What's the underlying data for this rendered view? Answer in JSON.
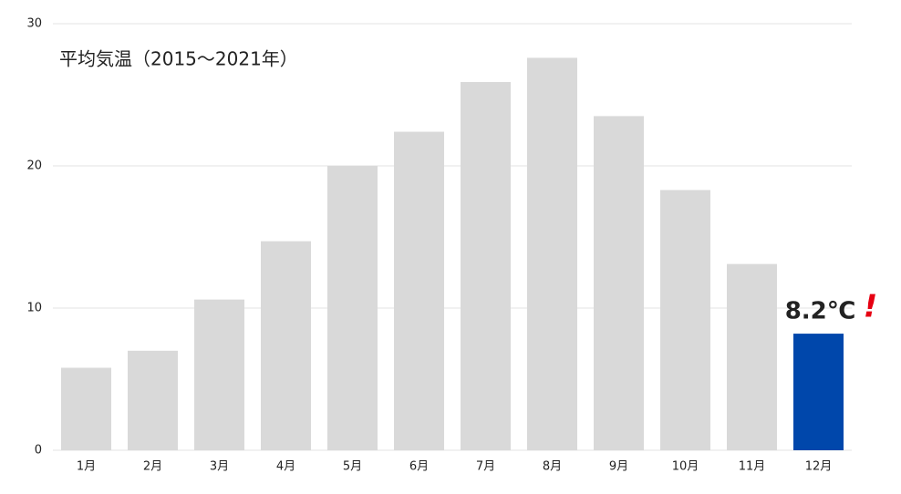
{
  "chart_data": {
    "type": "bar",
    "title": "平均気温（2015〜2021年）",
    "categories": [
      "1月",
      "2月",
      "3月",
      "4月",
      "5月",
      "6月",
      "7月",
      "8月",
      "9月",
      "10月",
      "11月",
      "12月"
    ],
    "values": [
      5.8,
      7.0,
      10.6,
      14.7,
      20.0,
      22.4,
      25.9,
      27.6,
      23.5,
      18.3,
      13.1,
      8.2
    ],
    "value_labels": [
      null,
      null,
      null,
      null,
      null,
      null,
      null,
      null,
      null,
      null,
      null,
      "8.2℃"
    ],
    "colors": [
      "#d9d9d9",
      "#d9d9d9",
      "#d9d9d9",
      "#d9d9d9",
      "#d9d9d9",
      "#d9d9d9",
      "#d9d9d9",
      "#d9d9d9",
      "#d9d9d9",
      "#d9d9d9",
      "#d9d9d9",
      "#0047ab"
    ],
    "annotation": "!",
    "annotation_color": "#e60012",
    "ylim": [
      0,
      30
    ],
    "yticks": [
      0,
      10,
      20,
      30
    ],
    "grid": true
  }
}
